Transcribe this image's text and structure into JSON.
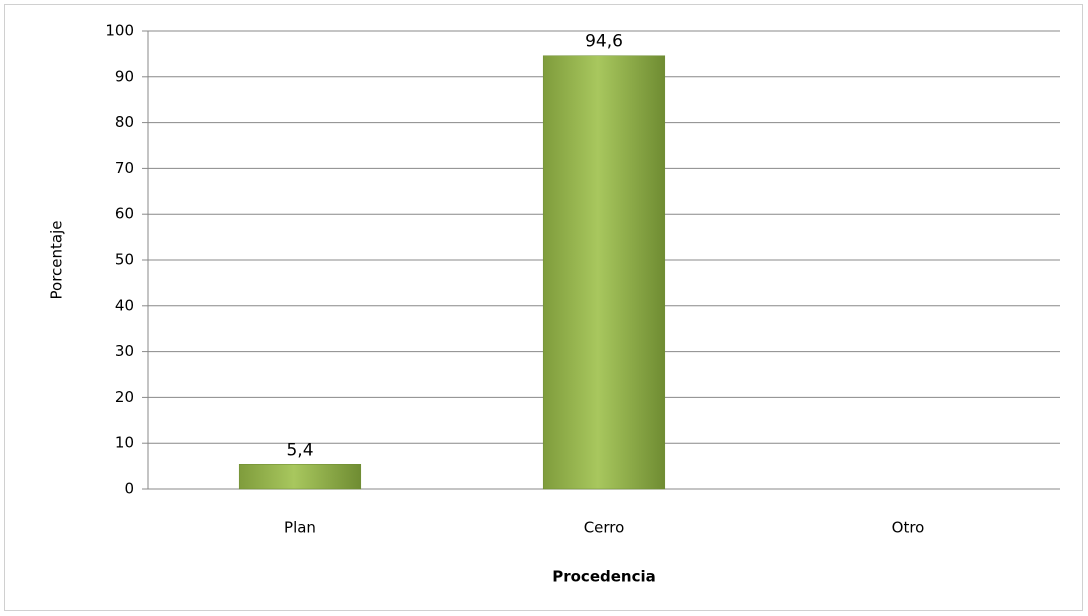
{
  "chart_data": {
    "type": "bar",
    "categories": [
      "Plan",
      "Cerro",
      "Otro"
    ],
    "values": [
      5.4,
      94.6,
      null
    ],
    "value_labels": [
      "5,4",
      "94,6",
      null
    ],
    "color": "#9bbb59",
    "xlabel": "Procedencia",
    "ylabel": "Porcentaje",
    "ylim": [
      0,
      100
    ],
    "yticks": [
      0,
      10,
      20,
      30,
      40,
      50,
      60,
      70,
      80,
      90,
      100
    ],
    "grid": true
  }
}
